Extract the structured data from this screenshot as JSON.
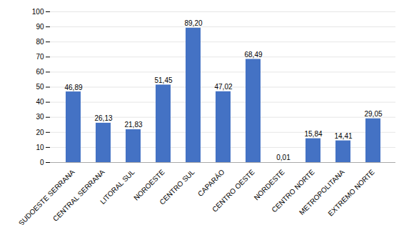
{
  "chart_data": {
    "type": "bar",
    "categories": [
      "SUDOESTE SERRANA",
      "CENTRAL SERRANA",
      "LITORAL SUL",
      "NOROESTE",
      "CENTRO SUL",
      "CAPARÁO",
      "CENTRO OESTE",
      "NORDESTE",
      "CENTRO NORTE",
      "METROPOLITANA",
      "EXTREMO NORTE"
    ],
    "values": [
      46.89,
      26.13,
      21.83,
      51.45,
      89.2,
      47.02,
      68.49,
      0.01,
      15.84,
      14.41,
      29.05
    ],
    "value_labels": [
      "46,89",
      "26,13",
      "21,83",
      "51,45",
      "89,20",
      "47,02",
      "68,49",
      "0,01",
      "15,84",
      "14,41",
      "29,05"
    ],
    "data_labels": true,
    "color": "#4472C4",
    "ylim": [
      0,
      100
    ],
    "yticks": [
      0,
      10,
      20,
      30,
      40,
      50,
      60,
      70,
      80,
      90,
      100
    ],
    "grid": true
  }
}
